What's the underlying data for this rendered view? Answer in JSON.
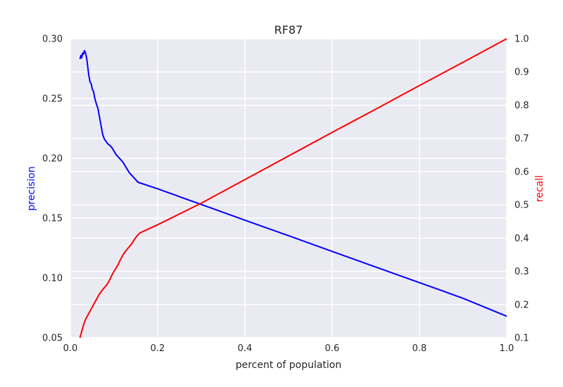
{
  "chart_data": {
    "type": "line",
    "title": "RF87",
    "xlabel": "percent of population",
    "ylabel_left": "precision",
    "ylabel_right": "recall",
    "xlim": [
      0.0,
      1.0
    ],
    "ylim_left": [
      0.05,
      0.3
    ],
    "ylim_right": [
      0.1,
      1.0
    ],
    "x_ticks": [
      "0.0",
      "0.2",
      "0.4",
      "0.6",
      "0.8",
      "1.0"
    ],
    "y_left_ticks": [
      "0.05",
      "0.10",
      "0.15",
      "0.20",
      "0.25",
      "0.30"
    ],
    "y_right_ticks": [
      "0.1",
      "0.2",
      "0.3",
      "0.4",
      "0.5",
      "0.6",
      "0.7",
      "0.8",
      "0.9",
      "1.0"
    ],
    "grid": true,
    "background_color": "#eaeaf2",
    "grid_color": "#ffffff",
    "series": [
      {
        "name": "precision",
        "axis": "left",
        "color": "#0000ff",
        "x": [
          0.022,
          0.024,
          0.026,
          0.028,
          0.03,
          0.032,
          0.034,
          0.036,
          0.038,
          0.04,
          0.042,
          0.045,
          0.048,
          0.05,
          0.053,
          0.056,
          0.06,
          0.063,
          0.066,
          0.07,
          0.074,
          0.078,
          0.082,
          0.086,
          0.09,
          0.095,
          0.1,
          0.105,
          0.11,
          0.115,
          0.12,
          0.125,
          0.13,
          0.135,
          0.14,
          0.145,
          0.15,
          0.155,
          0.2,
          0.3,
          0.4,
          0.5,
          0.6,
          0.7,
          0.8,
          0.9,
          1.0
        ],
        "y": [
          0.283,
          0.286,
          0.284,
          0.288,
          0.287,
          0.29,
          0.289,
          0.286,
          0.282,
          0.276,
          0.27,
          0.264,
          0.262,
          0.258,
          0.256,
          0.25,
          0.245,
          0.242,
          0.236,
          0.228,
          0.22,
          0.216,
          0.214,
          0.212,
          0.211,
          0.209,
          0.206,
          0.203,
          0.201,
          0.199,
          0.197,
          0.194,
          0.191,
          0.188,
          0.186,
          0.184,
          0.182,
          0.18,
          0.1745,
          0.1614,
          0.1483,
          0.1353,
          0.1222,
          0.1091,
          0.0961,
          0.083,
          0.068
        ]
      },
      {
        "name": "recall",
        "axis": "right",
        "color": "#ff0000",
        "x": [
          0.022,
          0.025,
          0.028,
          0.031,
          0.035,
          0.04,
          0.045,
          0.05,
          0.055,
          0.06,
          0.065,
          0.07,
          0.075,
          0.08,
          0.085,
          0.09,
          0.095,
          0.1,
          0.105,
          0.11,
          0.115,
          0.12,
          0.125,
          0.13,
          0.135,
          0.14,
          0.145,
          0.15,
          0.155,
          0.16,
          0.2,
          0.3,
          0.4,
          0.5,
          0.6,
          0.7,
          0.8,
          0.9,
          1.0
        ],
        "y": [
          0.1,
          0.114,
          0.128,
          0.142,
          0.156,
          0.168,
          0.18,
          0.192,
          0.204,
          0.216,
          0.228,
          0.238,
          0.246,
          0.254,
          0.262,
          0.274,
          0.288,
          0.3,
          0.31,
          0.322,
          0.336,
          0.348,
          0.358,
          0.366,
          0.374,
          0.382,
          0.392,
          0.402,
          0.41,
          0.416,
          0.44,
          0.505,
          0.576,
          0.647,
          0.718,
          0.788,
          0.859,
          0.929,
          1.0
        ]
      }
    ]
  }
}
